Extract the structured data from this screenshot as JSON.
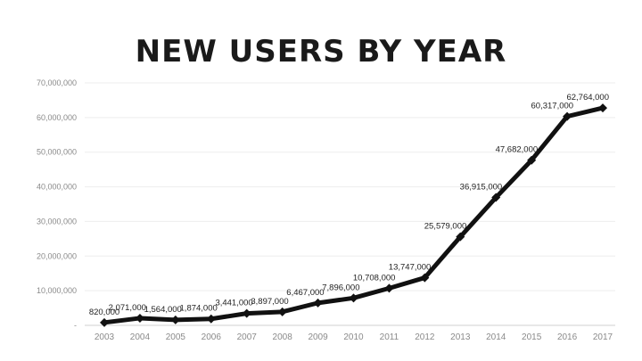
{
  "chart_data": {
    "type": "line",
    "title": "NEW USERS BY YEAR",
    "xlabel": "",
    "ylabel": "",
    "categories": [
      "2003",
      "2004",
      "2005",
      "2006",
      "2007",
      "2008",
      "2009",
      "2010",
      "2011",
      "2012",
      "2013",
      "2014",
      "2015",
      "2016",
      "2017"
    ],
    "values": [
      820000,
      2071000,
      1564000,
      1874000,
      3441000,
      3897000,
      6467000,
      7896000,
      10708000,
      13747000,
      25579000,
      36915000,
      47682000,
      60317000,
      62764000
    ],
    "data_labels": [
      "820,000",
      "2,071,000",
      "1,564,000",
      "1,874,000",
      "3,441,000",
      "3,897,000",
      "6,467,000",
      "7,896,000",
      "10,708,000",
      "13,747,000",
      "25,579,000",
      "36,915,000",
      "47,682,000",
      "60,317,000",
      "62,764,000"
    ],
    "y_ticks": [
      "-",
      "10,000,000",
      "20,000,000",
      "30,000,000",
      "40,000,000",
      "50,000,000",
      "60,000,000",
      "70,000,000"
    ],
    "ylim": [
      0,
      70000000
    ],
    "grid": true,
    "colors": {
      "line": "#111111",
      "grid": "#eeeeee",
      "axis": "#d0d0d0"
    }
  }
}
